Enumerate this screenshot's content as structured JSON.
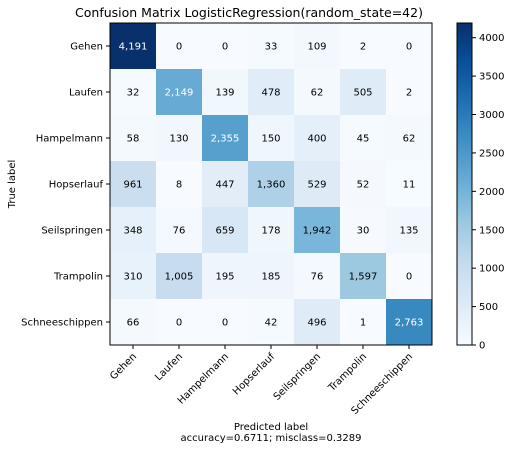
{
  "chart_data": {
    "type": "heatmap",
    "title": "Confusion Matrix LogisticRegression(random_state=42)",
    "xlabel": "Predicted label",
    "xlabel_note": "accuracy=0.6711; misclass=0.3289",
    "ylabel": "True label",
    "row_labels": [
      "Gehen",
      "Laufen",
      "Hampelmann",
      "Hopserlauf",
      "Seilspringen",
      "Trampolin",
      "Schneeschippen"
    ],
    "col_labels": [
      "Gehen",
      "Laufen",
      "Hampelmann",
      "Hopserlauf",
      "Seilspringen",
      "Trampolin",
      "Schneeschippen"
    ],
    "cell_text": [
      [
        "4,191",
        "0",
        "0",
        "33",
        "109",
        "2",
        "0"
      ],
      [
        "32",
        "2,149",
        "139",
        "478",
        "62",
        "505",
        "2"
      ],
      [
        "58",
        "130",
        "2,355",
        "150",
        "400",
        "45",
        "62"
      ],
      [
        "961",
        "8",
        "447",
        "1,360",
        "529",
        "52",
        "11"
      ],
      [
        "348",
        "76",
        "659",
        "178",
        "1,942",
        "30",
        "135"
      ],
      [
        "310",
        "1,005",
        "195",
        "185",
        "76",
        "1,597",
        "0"
      ],
      [
        "66",
        "0",
        "0",
        "42",
        "496",
        "1",
        "2,763"
      ]
    ],
    "values": [
      [
        4191,
        0,
        0,
        33,
        109,
        2,
        0
      ],
      [
        32,
        2149,
        139,
        478,
        62,
        505,
        2
      ],
      [
        58,
        130,
        2355,
        150,
        400,
        45,
        62
      ],
      [
        961,
        8,
        447,
        1360,
        529,
        52,
        11
      ],
      [
        348,
        76,
        659,
        178,
        1942,
        30,
        135
      ],
      [
        310,
        1005,
        195,
        185,
        76,
        1597,
        0
      ],
      [
        66,
        0,
        0,
        42,
        496,
        1,
        2763
      ]
    ],
    "colormap": "Blues",
    "vmin": 0,
    "vmax": 4191,
    "colorbar_ticks": [
      0,
      500,
      1000,
      1500,
      2000,
      2500,
      3000,
      3500,
      4000
    ],
    "colorbar_tick_labels": [
      "0",
      "500",
      "1000",
      "1500",
      "2000",
      "2500",
      "3000",
      "3500",
      "4000"
    ],
    "colors": {
      "text_dark": "#000000",
      "text_light": "#ffffff"
    }
  }
}
